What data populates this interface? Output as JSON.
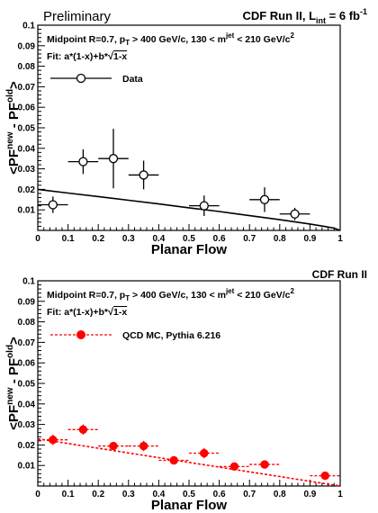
{
  "chart_data": [
    {
      "type": "scatter",
      "header_left": "Preliminary",
      "header_right": "CDF Run II, L",
      "header_right_sub": "int",
      "header_right_tail": " = 6 fb",
      "header_right_sup": "-1",
      "cuts": {
        "a": "Midpoint R=0.7, p",
        "a_sub": "T",
        "b": " > 400 GeV/c, 130 < m",
        "b_sup": "jet",
        "c": " < 210 GeV/c",
        "c_sup": "2"
      },
      "fit_label": "Fit: a*(1-x)+b*",
      "fit_label_tail": "1-x",
      "legend": [
        {
          "label": "Data",
          "style": "open-circle-solid"
        }
      ],
      "xlabel": "Planar Flow",
      "ylabel": {
        "open": "<PF",
        "sup1": "new",
        "mid": " - PF",
        "sup2": "old",
        "close": ">"
      },
      "xlim": [
        0,
        1
      ],
      "ylim": [
        0,
        0.1
      ],
      "xticks": [
        "0",
        "0.1",
        "0.2",
        "0.3",
        "0.4",
        "0.5",
        "0.6",
        "0.7",
        "0.8",
        "0.9",
        "1"
      ],
      "yticks": [
        "0.01",
        "0.02",
        "0.03",
        "0.04",
        "0.05",
        "0.06",
        "0.07",
        "0.08",
        "0.09",
        "0.1"
      ],
      "series": [
        {
          "name": "Data",
          "color": "#000000",
          "marker": "open-circle",
          "points": [
            {
              "x": 0.05,
              "y": 0.0125,
              "xerr": 0.05,
              "yerr": 0.004
            },
            {
              "x": 0.15,
              "y": 0.0335,
              "xerr": 0.05,
              "yerr": 0.006
            },
            {
              "x": 0.25,
              "y": 0.035,
              "xerr": 0.05,
              "yerr": 0.0145
            },
            {
              "x": 0.35,
              "y": 0.027,
              "xerr": 0.05,
              "yerr": 0.007
            },
            {
              "x": 0.55,
              "y": 0.012,
              "xerr": 0.05,
              "yerr": 0.005
            },
            {
              "x": 0.75,
              "y": 0.015,
              "xerr": 0.05,
              "yerr": 0.006
            },
            {
              "x": 0.85,
              "y": 0.008,
              "xerr": 0.05,
              "yerr": 0.003
            }
          ]
        }
      ],
      "fit": {
        "a": 0.015,
        "b": 0.005,
        "color": "#000000",
        "style": "solid",
        "x": [
          0,
          0.1,
          0.2,
          0.3,
          0.4,
          0.5,
          0.6,
          0.7,
          0.8,
          0.9,
          0.95,
          0.98,
          1.0
        ],
        "y": [
          0.02,
          0.0182,
          0.0165,
          0.0147,
          0.0129,
          0.011,
          0.0092,
          0.0072,
          0.0052,
          0.0031,
          0.0019,
          0.0011,
          0.0
        ]
      }
    },
    {
      "type": "scatter",
      "header_left": "",
      "header_right": "CDF Run II",
      "cuts": {
        "a": "Midpoint R=0.7, p",
        "a_sub": "T",
        "b": " > 400 GeV/c, 130 < m",
        "b_sup": "jet",
        "c": " < 210 GeV/c",
        "c_sup": "2"
      },
      "fit_label": "Fit: a*(1-x)+b*",
      "fit_label_tail": "1-x",
      "legend": [
        {
          "label": "QCD MC, Pythia 6.216",
          "style": "filled-circle-dashed"
        }
      ],
      "xlabel": "Planar Flow",
      "ylabel": {
        "open": "<PF",
        "sup1": "new",
        "mid": " - PF",
        "sup2": "old",
        "close": ">"
      },
      "xlim": [
        0,
        1
      ],
      "ylim": [
        0,
        0.1
      ],
      "xticks": [
        "0",
        "0.1",
        "0.2",
        "0.3",
        "0.4",
        "0.5",
        "0.6",
        "0.7",
        "0.8",
        "0.9",
        "1"
      ],
      "yticks": [
        "0.01",
        "0.02",
        "0.03",
        "0.04",
        "0.05",
        "0.06",
        "0.07",
        "0.08",
        "0.09",
        "0.1"
      ],
      "series": [
        {
          "name": "QCD MC, Pythia 6.216",
          "color": "#ff0000",
          "marker": "filled-circle",
          "points": [
            {
              "x": 0.05,
              "y": 0.0225,
              "xerr": 0.05,
              "yerr": 0.0025
            },
            {
              "x": 0.15,
              "y": 0.0275,
              "xerr": 0.05,
              "yerr": 0.0025
            },
            {
              "x": 0.25,
              "y": 0.0195,
              "xerr": 0.05,
              "yerr": 0.001
            },
            {
              "x": 0.35,
              "y": 0.0195,
              "xerr": 0.05,
              "yerr": 0.0025
            },
            {
              "x": 0.45,
              "y": 0.0125,
              "xerr": 0.05,
              "yerr": 0.0015
            },
            {
              "x": 0.55,
              "y": 0.016,
              "xerr": 0.05,
              "yerr": 0.0025
            },
            {
              "x": 0.65,
              "y": 0.0095,
              "xerr": 0.05,
              "yerr": 0.001
            },
            {
              "x": 0.75,
              "y": 0.0105,
              "xerr": 0.05,
              "yerr": 0.002
            },
            {
              "x": 0.95,
              "y": 0.005,
              "xerr": 0.05,
              "yerr": 0.0008
            }
          ]
        }
      ],
      "fit": {
        "a": 0.023,
        "b": 0.0,
        "color": "#ff0000",
        "style": "dashed",
        "x": [
          0,
          0.1,
          0.2,
          0.3,
          0.4,
          0.5,
          0.6,
          0.7,
          0.8,
          0.9,
          1.0
        ],
        "y": [
          0.023,
          0.0207,
          0.0184,
          0.0161,
          0.0138,
          0.0115,
          0.0092,
          0.0069,
          0.0046,
          0.0023,
          0.0
        ]
      }
    }
  ]
}
